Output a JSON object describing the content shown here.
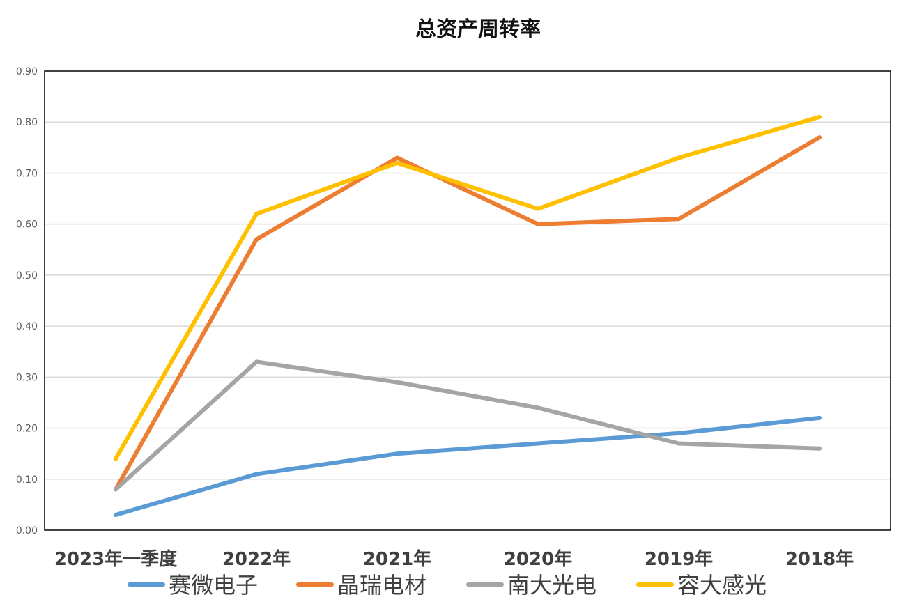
{
  "chart_data": {
    "type": "line",
    "title": "总资产周转率",
    "categories": [
      "2023年一季度",
      "2022年",
      "2021年",
      "2020年",
      "2019年",
      "2018年"
    ],
    "yticks": [
      "0.00",
      "0.10",
      "0.20",
      "0.30",
      "0.40",
      "0.50",
      "0.60",
      "0.70",
      "0.80",
      "0.90"
    ],
    "ylim": [
      0,
      0.9
    ],
    "grid": true,
    "legend_position": "bottom",
    "series": [
      {
        "name": "赛微电子",
        "color": "#5B9BD5",
        "values": [
          0.03,
          0.11,
          0.15,
          0.17,
          0.19,
          0.22
        ]
      },
      {
        "name": "晶瑞电材",
        "color": "#ED7D31",
        "values": [
          0.08,
          0.57,
          0.73,
          0.6,
          0.61,
          0.77
        ]
      },
      {
        "name": "南大光电",
        "color": "#A5A5A5",
        "values": [
          0.08,
          0.33,
          0.29,
          0.24,
          0.17,
          0.16
        ]
      },
      {
        "name": "容大感光",
        "color": "#FFC000",
        "values": [
          0.14,
          0.62,
          0.72,
          0.63,
          0.73,
          0.81
        ]
      }
    ]
  }
}
